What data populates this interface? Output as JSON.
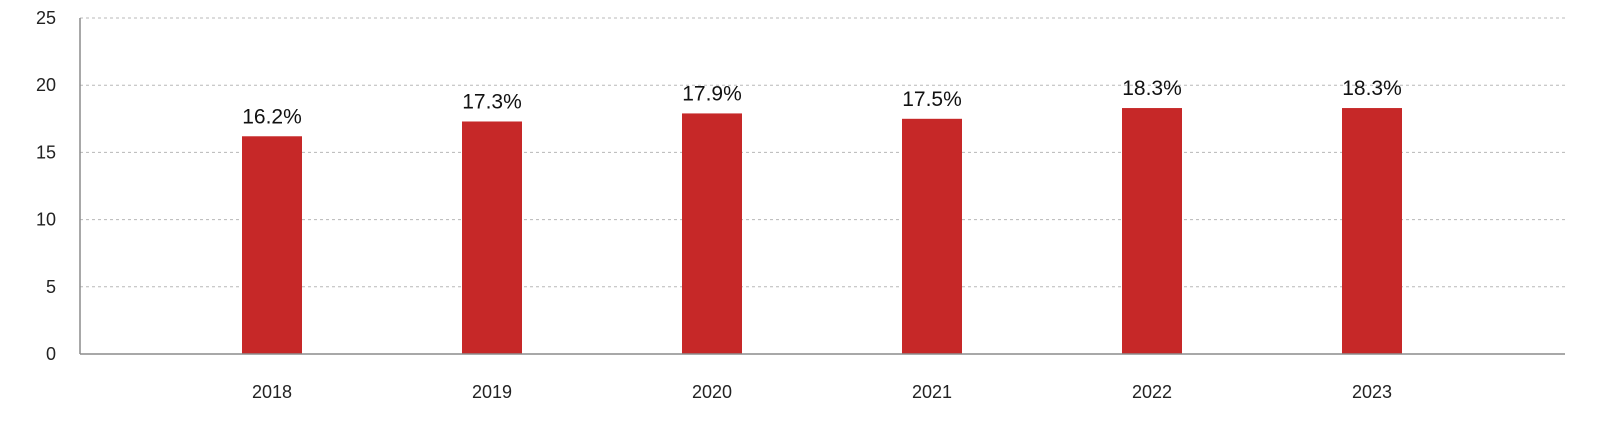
{
  "chart_data": {
    "type": "bar",
    "title": "",
    "xlabel": "",
    "ylabel": "",
    "categories": [
      "2018",
      "2019",
      "2020",
      "2021",
      "2022",
      "2023"
    ],
    "values": [
      16.2,
      17.3,
      17.9,
      17.5,
      18.3,
      18.3
    ],
    "data_labels": [
      "16.2%",
      "17.3%",
      "17.9%",
      "17.5%",
      "18.3%",
      "18.3%"
    ],
    "ylim": [
      0,
      25
    ],
    "y_ticks": [
      0,
      5,
      10,
      15,
      20,
      25
    ],
    "y_tick_labels": [
      "0",
      "5",
      "10",
      "15",
      "20",
      "25"
    ],
    "grid": true,
    "grid_style": "dashed",
    "legend": "none",
    "colors": {
      "bar": "#C62828"
    }
  }
}
